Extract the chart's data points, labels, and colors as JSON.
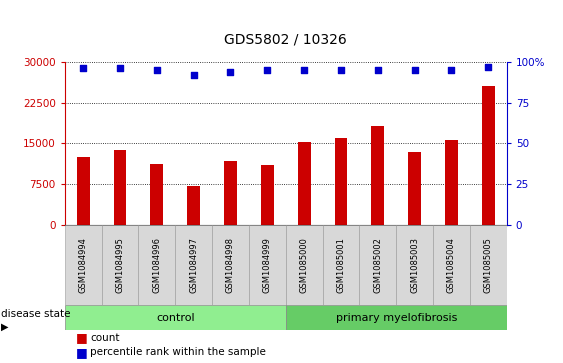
{
  "title": "GDS5802 / 10326",
  "samples": [
    "GSM1084994",
    "GSM1084995",
    "GSM1084996",
    "GSM1084997",
    "GSM1084998",
    "GSM1084999",
    "GSM1085000",
    "GSM1085001",
    "GSM1085002",
    "GSM1085003",
    "GSM1085004",
    "GSM1085005"
  ],
  "counts": [
    12500,
    13800,
    11200,
    7200,
    11800,
    11000,
    15200,
    16000,
    18200,
    13500,
    15700,
    25500
  ],
  "percentile_ranks": [
    96,
    96,
    95,
    92,
    94,
    95,
    95,
    95,
    95,
    95,
    95,
    97
  ],
  "bar_color": "#cc0000",
  "dot_color": "#0000cc",
  "control_color": "#90ee90",
  "pmf_color": "#66cc66",
  "label_bg_color": "#d8d8d8",
  "ylim_left": [
    0,
    30000
  ],
  "ylim_right": [
    0,
    100
  ],
  "yticks_left": [
    0,
    7500,
    15000,
    22500,
    30000
  ],
  "yticks_right": [
    0,
    25,
    50,
    75,
    100
  ],
  "legend_count_label": "count",
  "legend_pct_label": "percentile rank within the sample",
  "disease_state_label": "disease state",
  "control_label": "control",
  "pmf_label": "primary myelofibrosis",
  "n_control": 6,
  "n_pmf": 6
}
